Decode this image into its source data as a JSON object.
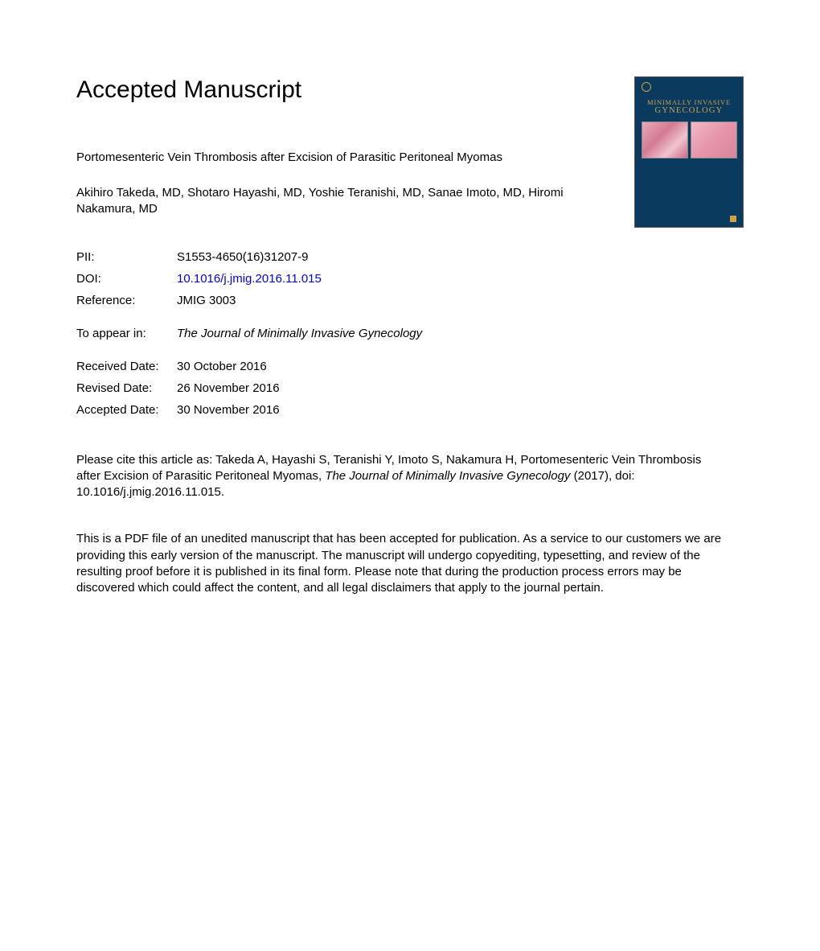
{
  "heading": "Accepted Manuscript",
  "cover": {
    "journal_line1": "MINIMALLY INVASIVE",
    "journal_line2": "GYNECOLOGY",
    "bg_color": "#0a3a5e",
    "accent_color": "#cfa24a"
  },
  "title": "Portomesenteric Vein Thrombosis after Excision of Parasitic Peritoneal Myomas",
  "authors": "Akihiro Takeda, MD, Shotaro Hayashi, MD, Yoshie Teranishi, MD, Sanae Imoto, MD, Hiromi Nakamura, MD",
  "meta": {
    "pii_label": "PII:",
    "pii_value": "S1553-4650(16)31207-9",
    "doi_label": "DOI:",
    "doi_value": "10.1016/j.jmig.2016.11.015",
    "ref_label": "Reference:",
    "ref_value": "JMIG 3003"
  },
  "appear": {
    "label": "To appear in:",
    "value": "The Journal of Minimally Invasive Gynecology"
  },
  "dates": {
    "received_label": "Received Date:",
    "received_value": "30 October 2016",
    "revised_label": "Revised Date:",
    "revised_value": "26 November 2016",
    "accepted_label": "Accepted Date:",
    "accepted_value": "30 November 2016"
  },
  "citation": {
    "prefix": "Please cite this article as: Takeda A, Hayashi S, Teranishi Y, Imoto S, Nakamura H, Portomesenteric Vein Thrombosis after Excision of Parasitic Peritoneal Myomas, ",
    "journal": "The Journal of Minimally Invasive Gynecology",
    "suffix": " (2017), doi: 10.1016/j.jmig.2016.11.015."
  },
  "disclaimer": "This is a PDF file of an unedited manuscript that has been accepted for publication. As a service to our customers we are providing this early version of the manuscript. The manuscript will undergo copyediting, typesetting, and review of the resulting proof before it is published in its final form. Please note that during the production process errors may be discovered which could affect the content, and all legal disclaimers that apply to the journal pertain.",
  "colors": {
    "text": "#000000",
    "link": "#0000ee",
    "background": "#ffffff"
  },
  "typography": {
    "heading_fontsize": 30,
    "body_fontsize": 15,
    "font_family": "Arial, Helvetica, sans-serif"
  }
}
